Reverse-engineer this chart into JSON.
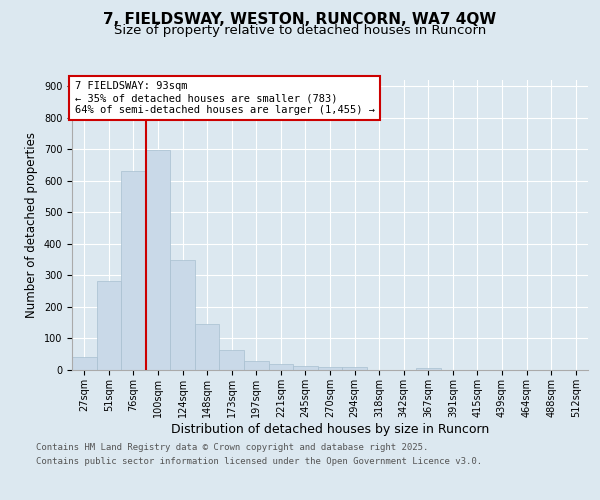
{
  "title1": "7, FIELDSWAY, WESTON, RUNCORN, WA7 4QW",
  "title2": "Size of property relative to detached houses in Runcorn",
  "xlabel": "Distribution of detached houses by size in Runcorn",
  "ylabel": "Number of detached properties",
  "categories": [
    "27sqm",
    "51sqm",
    "76sqm",
    "100sqm",
    "124sqm",
    "148sqm",
    "173sqm",
    "197sqm",
    "221sqm",
    "245sqm",
    "270sqm",
    "294sqm",
    "318sqm",
    "342sqm",
    "367sqm",
    "391sqm",
    "415sqm",
    "439sqm",
    "464sqm",
    "488sqm",
    "512sqm"
  ],
  "values": [
    42,
    283,
    630,
    697,
    350,
    145,
    65,
    30,
    20,
    12,
    10,
    8,
    0,
    0,
    7,
    0,
    0,
    0,
    0,
    0,
    0
  ],
  "bar_color": "#c9d9e8",
  "bar_edge_color": "#a8bfd0",
  "red_line_index": 3,
  "property_label": "7 FIELDSWAY: 93sqm",
  "annotation_line1": "← 35% of detached houses are smaller (783)",
  "annotation_line2": "64% of semi-detached houses are larger (1,455) →",
  "annotation_box_color": "#ffffff",
  "annotation_box_edge": "#cc0000",
  "red_line_color": "#cc0000",
  "ylim": [
    0,
    920
  ],
  "yticks": [
    0,
    100,
    200,
    300,
    400,
    500,
    600,
    700,
    800,
    900
  ],
  "fig_background": "#dce8f0",
  "plot_background": "#dce8f0",
  "footer1": "Contains HM Land Registry data © Crown copyright and database right 2025.",
  "footer2": "Contains public sector information licensed under the Open Government Licence v3.0.",
  "title1_fontsize": 11,
  "title2_fontsize": 9.5,
  "xlabel_fontsize": 9,
  "ylabel_fontsize": 8.5,
  "tick_fontsize": 7,
  "footer_fontsize": 6.5,
  "annot_fontsize": 7.5
}
